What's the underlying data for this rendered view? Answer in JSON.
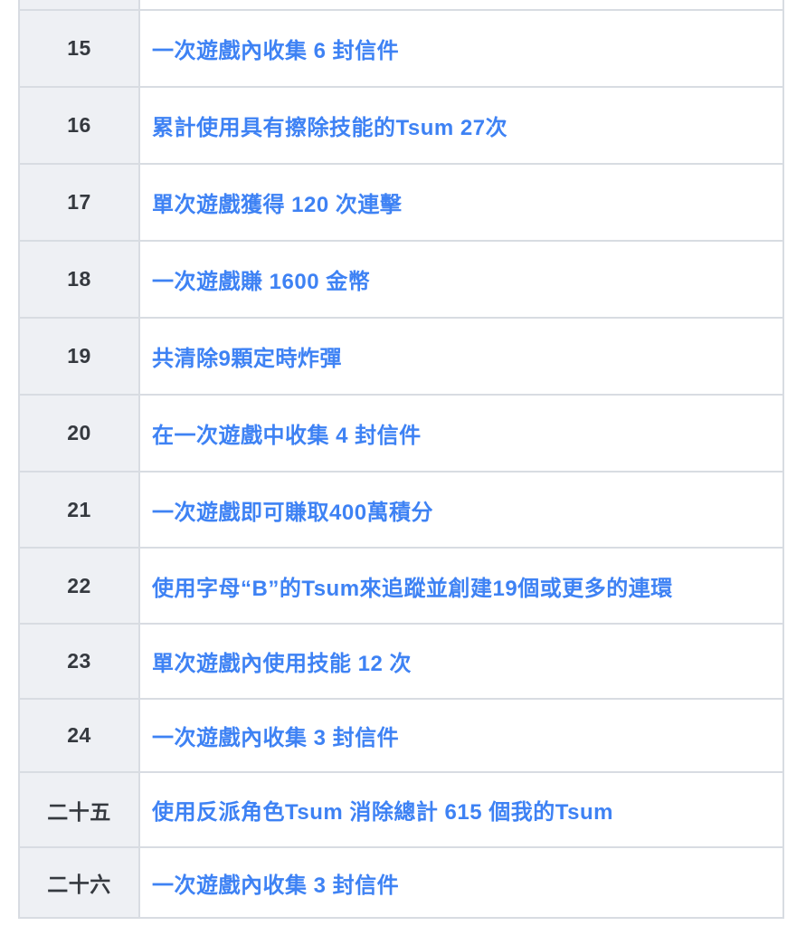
{
  "table": {
    "description": "mission-list-table",
    "colors": {
      "link_blue": "#3e82f4",
      "number_text": "#35393f",
      "number_column_bg": "#eef0f4",
      "row_bg": "#ffffff",
      "border": "#d8dce2"
    },
    "rows": [
      {
        "number": "15",
        "task": "一次遊戲內收集 6 封信件"
      },
      {
        "number": "16",
        "task": "累計使用具有擦除技能的Tsum 27次"
      },
      {
        "number": "17",
        "task": "單次遊戲獲得 120 次連擊"
      },
      {
        "number": "18",
        "task": "一次遊戲賺 1600 金幣"
      },
      {
        "number": "19",
        "task": "共清除9顆定時炸彈"
      },
      {
        "number": "20",
        "task": "在一次遊戲中收集 4 封信件"
      },
      {
        "number": "21",
        "task": "一次遊戲即可賺取400萬積分"
      },
      {
        "number": "22",
        "task": "使用字母“B”的Tsum來追蹤並創建19個或更多的連環"
      },
      {
        "number": "23",
        "task": "單次遊戲內使用技能 12 次"
      },
      {
        "number": "24",
        "task": "一次遊戲內收集 3 封信件"
      },
      {
        "number": "二十五",
        "task": "使用反派角色Tsum 消除總計 615 個我的Tsum"
      },
      {
        "number": "二十六",
        "task": "一次遊戲內收集 3 封信件"
      }
    ]
  }
}
